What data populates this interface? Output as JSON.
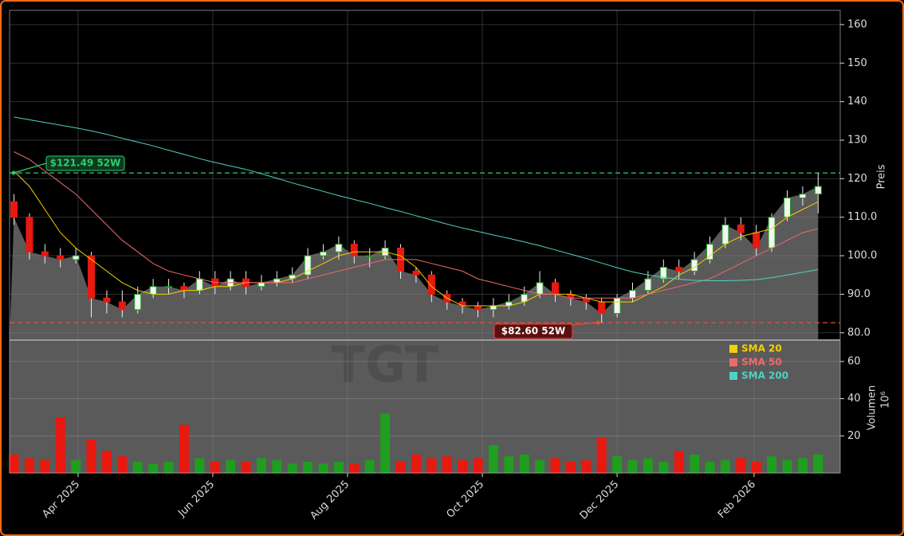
{
  "chart_data": {
    "type": "candlestick",
    "watermark": "TGT",
    "y_label": "Preis",
    "volume_label": "Volumen",
    "volume_unit": "10⁶",
    "x": [
      "2025-03-03",
      "2025-03-10",
      "2025-03-17",
      "2025-03-24",
      "2025-03-31",
      "2025-04-07",
      "2025-04-14",
      "2025-04-21",
      "2025-04-28",
      "2025-05-05",
      "2025-05-12",
      "2025-05-19",
      "2025-05-26",
      "2025-06-02",
      "2025-06-09",
      "2025-06-16",
      "2025-06-23",
      "2025-06-30",
      "2025-07-07",
      "2025-07-14",
      "2025-07-21",
      "2025-07-28",
      "2025-08-04",
      "2025-08-11",
      "2025-08-18",
      "2025-08-25",
      "2025-09-01",
      "2025-09-08",
      "2025-09-15",
      "2025-09-22",
      "2025-09-29",
      "2025-10-06",
      "2025-10-13",
      "2025-10-20",
      "2025-10-27",
      "2025-11-03",
      "2025-11-10",
      "2025-11-17",
      "2025-11-24",
      "2025-12-01",
      "2025-12-08",
      "2025-12-15",
      "2025-12-22",
      "2025-12-29",
      "2026-01-05",
      "2026-01-12",
      "2026-01-19",
      "2026-01-26",
      "2026-02-02",
      "2026-02-09",
      "2026-02-16",
      "2026-02-23",
      "2026-03-02"
    ],
    "open": [
      114,
      110,
      101,
      100,
      99,
      100,
      89,
      88,
      86,
      90,
      92,
      92,
      91,
      94,
      92,
      94,
      92,
      93,
      94,
      95,
      100,
      101,
      103,
      100,
      100,
      102,
      96,
      95,
      90,
      88,
      87,
      86,
      87,
      88,
      90,
      93,
      90,
      89,
      88,
      85,
      89,
      91,
      94,
      97,
      96,
      99,
      103,
      108,
      106,
      102,
      110,
      115,
      116
    ],
    "high": [
      116,
      111,
      103,
      102,
      102,
      101,
      91,
      91,
      92,
      94,
      94,
      93,
      96,
      96,
      96,
      96,
      95,
      96,
      97,
      102,
      103,
      105,
      104,
      102,
      104,
      103,
      97,
      96,
      91,
      89,
      88,
      89,
      90,
      92,
      96,
      94,
      91,
      90,
      89,
      90,
      93,
      96,
      99,
      99,
      101,
      105,
      110,
      110,
      108,
      111,
      117,
      118,
      121.49
    ],
    "low": [
      108,
      99,
      98,
      97,
      98,
      84,
      85,
      84,
      85,
      89,
      90,
      89,
      90,
      90,
      91,
      90,
      91,
      92,
      93,
      94,
      99,
      99,
      98,
      97,
      99,
      94,
      93,
      88,
      86,
      85,
      84,
      84,
      86,
      87,
      89,
      88,
      87,
      86,
      82.6,
      84,
      88,
      90,
      93,
      94,
      95,
      98,
      102,
      104,
      100,
      101,
      109,
      113,
      111
    ],
    "close": [
      110,
      101,
      100,
      99,
      100,
      89,
      88,
      86,
      90,
      92,
      92,
      91,
      94,
      92,
      94,
      92,
      93,
      94,
      95,
      100,
      101,
      103,
      100,
      100,
      102,
      96,
      95,
      90,
      88,
      87,
      86,
      87,
      88,
      90,
      93,
      90,
      89,
      88,
      85,
      89,
      91,
      94,
      97,
      96,
      99,
      103,
      108,
      106,
      102,
      110,
      115,
      116,
      118
    ],
    "volume": [
      10,
      8,
      7,
      30,
      7,
      18,
      12,
      9,
      6,
      5,
      6,
      26,
      8,
      6,
      7,
      6,
      8,
      7,
      5,
      6,
      5,
      6,
      5,
      7,
      32,
      6,
      10,
      8,
      9,
      7,
      8,
      15,
      9,
      10,
      7,
      8,
      6,
      7,
      19,
      9,
      7,
      8,
      6,
      12,
      10,
      6,
      7,
      8,
      6,
      9,
      7,
      8,
      10
    ],
    "up_color": "#1f9e1f",
    "down_color": "#e8190f",
    "area_color": "#5a5a5a",
    "series": [
      {
        "name": "SMA 20",
        "color": "#f5d000",
        "values": [
          122,
          118,
          112,
          106,
          102,
          99,
          96,
          93,
          91,
          90,
          90,
          91,
          91,
          92,
          92,
          93,
          93,
          93,
          94,
          96,
          98,
          100,
          101,
          101,
          101,
          100,
          97,
          92,
          89,
          87,
          87,
          87,
          87,
          88,
          90,
          90,
          90,
          89,
          88,
          88,
          88,
          90,
          92,
          95,
          97,
          100,
          103,
          105,
          106,
          107,
          110,
          112,
          114
        ]
      },
      {
        "name": "SMA 50",
        "color": "#f06a6a",
        "values": [
          127,
          125,
          122,
          119,
          116,
          112,
          108,
          104,
          101,
          98,
          96,
          95,
          94,
          93,
          93,
          93,
          93,
          93,
          93,
          94,
          95,
          96,
          97,
          98,
          99,
          99,
          99,
          98,
          97,
          96,
          94,
          93,
          92,
          91,
          90,
          90,
          89,
          89,
          89,
          89,
          89,
          90,
          91,
          92,
          93,
          94,
          96,
          98,
          100,
          102,
          104,
          106,
          107
        ]
      },
      {
        "name": "SMA 200",
        "color": "#4fd1c5",
        "values": [
          136,
          135.3,
          134.6,
          133.9,
          133.2,
          132.4,
          131.5,
          130.5,
          129.5,
          128.5,
          127.4,
          126.3,
          125.2,
          124.2,
          123.3,
          122.4,
          121.3,
          120.1,
          118.9,
          117.8,
          116.7,
          115.6,
          114.6,
          113.6,
          112.5,
          111.5,
          110.4,
          109.3,
          108.2,
          107.2,
          106.3,
          105.4,
          104.5,
          103.6,
          102.6,
          101.5,
          100.4,
          99.3,
          98.1,
          96.9,
          95.8,
          95,
          94.4,
          93.9,
          93.6,
          93.5,
          93.5,
          93.6,
          93.8,
          94.3,
          95,
          95.7,
          96.4
        ]
      }
    ],
    "annotations": [
      {
        "value": 121.49,
        "label": "$121.49 52W",
        "color": "#2ecc71"
      },
      {
        "value": 82.6,
        "label": "$82.60 52W",
        "color": "#e74c3c"
      }
    ],
    "xlim": [
      "2025-03-01",
      "2026-03-12"
    ],
    "xticks": [
      {
        "value": "2025-04-01",
        "label": "Apr 2025"
      },
      {
        "value": "2025-06-01",
        "label": "Jun 2025"
      },
      {
        "value": "2025-08-01",
        "label": "Aug 2025"
      },
      {
        "value": "2025-10-01",
        "label": "Oct 2025"
      },
      {
        "value": "2025-12-01",
        "label": "Dec 2025"
      },
      {
        "value": "2026-02-01",
        "label": "Feb 2026"
      }
    ],
    "ylim": [
      78.1,
      163.7
    ],
    "yticks": [
      {
        "value": 80,
        "label": "80.0"
      },
      {
        "value": 90,
        "label": "90.0"
      },
      {
        "value": 100,
        "label": "100.0"
      },
      {
        "value": 110,
        "label": "110.0"
      },
      120,
      130,
      140,
      150,
      160
    ],
    "volume_ylim": [
      0,
      71.5
    ],
    "volume_yticks": [
      20,
      40,
      60
    ],
    "grid": true,
    "legend_position": "lower right"
  }
}
